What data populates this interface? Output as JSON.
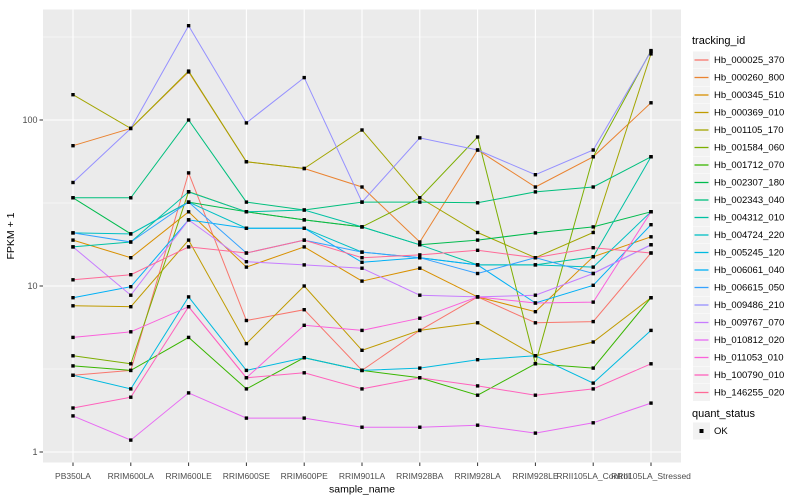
{
  "colors": {
    "background": "#FFFFFF",
    "panel_bg": "#EBEBEB",
    "grid": "#FFFFFF",
    "tick_label": "#4D4D4D",
    "axis_title": "#000000",
    "tick_mark": "#333333",
    "marker": "#000000",
    "legend_key_bg": "#F2F2F2",
    "legend_text": "#000000"
  },
  "chart_data": {
    "type": "line",
    "title": "",
    "xlabel": "sample_name",
    "ylabel": "FPKM + 1",
    "y_scale": "log10",
    "y_ticks": [
      1,
      10,
      100
    ],
    "y_tick_labels": [
      "1",
      "10",
      "100"
    ],
    "y_minor_ticks": [
      3.162,
      31.62,
      316.2
    ],
    "ylim": [
      0.87,
      460
    ],
    "grid": true,
    "legend_position": "right",
    "marker": "small-black-square",
    "legend_title": "tracking_id",
    "legend2_title": "quant_status",
    "legend2_items": [
      "OK"
    ],
    "categories": [
      "PB350LA",
      "RRIM600LA",
      "RRIM600LE",
      "RRIM600SE",
      "RRIM600PE",
      "RRIM901LA",
      "RRIM928BA",
      "RRIM928LA",
      "RRIM928LE",
      "RRII105LA_Control",
      "RRII105LA_Stressed"
    ],
    "series": [
      {
        "name": "Hb_000025_370",
        "color": "#F8766D",
        "values": [
          2.9,
          3.1,
          48,
          6.2,
          7.2,
          3.1,
          5.4,
          8.6,
          6.0,
          6.1,
          15.8
        ]
      },
      {
        "name": "Hb_000260_800",
        "color": "#EA8331",
        "values": [
          70,
          89,
          195,
          56,
          51,
          39.5,
          18.4,
          66,
          39.5,
          60,
          127
        ]
      },
      {
        "name": "Hb_000345_510",
        "color": "#D89000",
        "values": [
          18.9,
          14.8,
          28,
          13,
          17.2,
          10.7,
          12.8,
          8.6,
          7.0,
          15,
          19.8
        ]
      },
      {
        "name": "Hb_000369_010",
        "color": "#C09B00",
        "values": [
          7.6,
          7.5,
          18.9,
          4.5,
          10,
          4.1,
          5.4,
          6.0,
          3.8,
          4.6,
          8.5
        ]
      },
      {
        "name": "Hb_001105_170",
        "color": "#A3A500",
        "values": [
          142,
          89,
          197,
          56,
          51,
          87,
          34,
          21,
          14.8,
          21,
          250
        ]
      },
      {
        "name": "Hb_001584_060",
        "color": "#7CAE00",
        "values": [
          3.8,
          3.4,
          37,
          28,
          25,
          22.7,
          34,
          79,
          3.4,
          60,
          262
        ]
      },
      {
        "name": "Hb_001712_070",
        "color": "#39B600",
        "values": [
          3.3,
          3.1,
          4.9,
          2.4,
          3.7,
          3.1,
          2.8,
          2.2,
          3.4,
          3.2,
          8.5
        ]
      },
      {
        "name": "Hb_002307_180",
        "color": "#00BB4E",
        "values": [
          34,
          20.6,
          32,
          28,
          25,
          22.7,
          17.7,
          18.9,
          20.9,
          22.7,
          28
        ]
      },
      {
        "name": "Hb_002343_040",
        "color": "#00BF7D",
        "values": [
          34,
          34,
          100,
          32,
          28.7,
          32,
          32,
          31.7,
          36.9,
          39.5,
          60
        ]
      },
      {
        "name": "Hb_004312_010",
        "color": "#00C1A3",
        "values": [
          17.2,
          18.4,
          36.9,
          28,
          28.7,
          22.7,
          17.7,
          13.4,
          13.4,
          15,
          60
        ]
      },
      {
        "name": "Hb_004724_220",
        "color": "#00BFC4",
        "values": [
          20.9,
          20.6,
          32,
          22.3,
          22.3,
          16,
          14.8,
          13.4,
          13.4,
          13,
          28
        ]
      },
      {
        "name": "Hb_005245_120",
        "color": "#00BAE0",
        "values": [
          2.9,
          2.4,
          8.6,
          3.1,
          3.7,
          3.1,
          3.2,
          3.6,
          3.8,
          2.6,
          5.4
        ]
      },
      {
        "name": "Hb_006061_040",
        "color": "#00B0F6",
        "values": [
          8.5,
          9.9,
          25,
          22.3,
          22.3,
          13.9,
          14.8,
          13.4,
          7.9,
          10.1,
          23.4
        ]
      },
      {
        "name": "Hb_006615_050",
        "color": "#35A2FF",
        "values": [
          20.9,
          18.4,
          32,
          15.8,
          18.9,
          16,
          14.8,
          11.9,
          14.8,
          11.9,
          17.7
        ]
      },
      {
        "name": "Hb_009486_210",
        "color": "#9590FF",
        "values": [
          42,
          89,
          370,
          96,
          180,
          32,
          78,
          66,
          46.8,
          66,
          259
        ]
      },
      {
        "name": "Hb_009767_070",
        "color": "#C77CFF",
        "values": [
          17.2,
          8.8,
          25,
          14,
          13.4,
          12.8,
          8.8,
          8.6,
          8.8,
          11.9,
          17.7
        ]
      },
      {
        "name": "Hb_010812_020",
        "color": "#E76BF3",
        "values": [
          1.65,
          1.18,
          2.27,
          1.6,
          1.6,
          1.41,
          1.41,
          1.45,
          1.3,
          1.5,
          1.97
        ]
      },
      {
        "name": "Hb_011053_010",
        "color": "#FA62DB",
        "values": [
          4.9,
          5.3,
          7.5,
          2.8,
          5.8,
          5.4,
          6.4,
          8.6,
          7.9,
          8.0,
          28
        ]
      },
      {
        "name": "Hb_100790_010",
        "color": "#FF62BC",
        "values": [
          1.84,
          2.14,
          7.5,
          2.8,
          3.0,
          2.4,
          2.8,
          2.5,
          2.2,
          2.4,
          3.4
        ]
      },
      {
        "name": "Hb_146255_020",
        "color": "#FF6A98",
        "values": [
          10.9,
          11.7,
          17.2,
          15.8,
          18.9,
          14.8,
          15.4,
          16.4,
          14.8,
          17,
          15.8
        ]
      }
    ]
  }
}
